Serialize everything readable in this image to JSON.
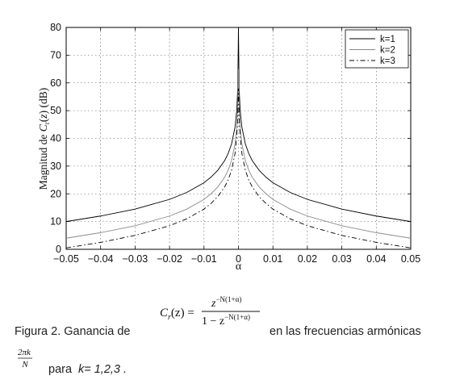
{
  "chart_data": {
    "type": "line",
    "xlabel": "α",
    "ylabel": "Magnitud de C_r(z) (dB)",
    "xlim": [
      -0.05,
      0.05
    ],
    "ylim": [
      0,
      80
    ],
    "xticks": [
      "−0.05",
      "−0.04",
      "−0.03",
      "−0.02",
      "−0.01",
      "0",
      "0.01",
      "0.02",
      "0.03",
      "0.04",
      "0.05"
    ],
    "yticks": [
      "0",
      "10",
      "20",
      "30",
      "40",
      "50",
      "60",
      "70",
      "80"
    ],
    "grid": true,
    "legend_position": "top-right",
    "series": [
      {
        "name": "k=1",
        "color": "#000000",
        "dash": "solid",
        "x": [
          -0.05,
          -0.04,
          -0.03,
          -0.02,
          -0.015,
          -0.01,
          -0.008,
          -0.006,
          -0.004,
          -0.003,
          -0.002,
          -0.001,
          -0.0005,
          -0.0002,
          0,
          0.0002,
          0.0005,
          0.001,
          0.002,
          0.003,
          0.004,
          0.006,
          0.008,
          0.01,
          0.015,
          0.02,
          0.03,
          0.04,
          0.05
        ],
        "y": [
          10.0,
          12.0,
          14.5,
          18.0,
          20.5,
          24.0,
          26.0,
          28.5,
          32.0,
          34.5,
          38.0,
          44.0,
          50.0,
          58.0,
          80.0,
          58.0,
          50.0,
          44.0,
          38.0,
          34.5,
          32.0,
          28.5,
          26.0,
          24.0,
          20.5,
          18.0,
          14.5,
          12.0,
          10.0
        ]
      },
      {
        "name": "k=2",
        "color": "#8a8a8a",
        "dash": "solid",
        "x": [
          -0.05,
          -0.04,
          -0.03,
          -0.02,
          -0.015,
          -0.01,
          -0.008,
          -0.006,
          -0.004,
          -0.003,
          -0.002,
          -0.001,
          -0.0005,
          -0.0002,
          0,
          0.0002,
          0.0005,
          0.001,
          0.002,
          0.003,
          0.004,
          0.006,
          0.008,
          0.01,
          0.015,
          0.02,
          0.03,
          0.04,
          0.05
        ],
        "y": [
          4.0,
          6.0,
          8.5,
          12.0,
          14.5,
          18.0,
          20.0,
          22.5,
          26.0,
          28.5,
          32.0,
          38.0,
          44.0,
          52.0,
          65.0,
          52.0,
          44.0,
          38.0,
          32.0,
          28.5,
          26.0,
          22.5,
          20.0,
          18.0,
          14.5,
          12.0,
          8.5,
          6.0,
          4.0
        ]
      },
      {
        "name": "k=3",
        "color": "#000000",
        "dash": "dashdot",
        "x": [
          -0.05,
          -0.04,
          -0.03,
          -0.02,
          -0.015,
          -0.01,
          -0.008,
          -0.006,
          -0.004,
          -0.003,
          -0.002,
          -0.001,
          -0.0005,
          -0.0002,
          0,
          0.0002,
          0.0005,
          0.001,
          0.002,
          0.003,
          0.004,
          0.006,
          0.008,
          0.01,
          0.015,
          0.02,
          0.03,
          0.04,
          0.05
        ],
        "y": [
          0.5,
          2.5,
          5.0,
          8.5,
          11.0,
          14.5,
          16.5,
          19.0,
          22.5,
          25.0,
          28.5,
          34.5,
          40.5,
          48.0,
          58.0,
          48.0,
          40.5,
          34.5,
          28.5,
          25.0,
          22.5,
          19.0,
          16.5,
          14.5,
          11.0,
          8.5,
          5.0,
          2.5,
          0.5
        ]
      }
    ]
  },
  "caption": {
    "prefix": "Figura 2. Ganancia de",
    "suffix": "en las frecuencias armónicas",
    "para_k": "para",
    "k_values": "k= 1,2,3 ."
  },
  "formula": {
    "lhs": "C",
    "lhs_sub": "r",
    "lhs_arg": "(z) =",
    "numerator": "z",
    "numerator_exp": "−N(1+α)",
    "denominator": "1 − z",
    "denominator_exp": "−N(1+α)",
    "harmonic_num": "2πk",
    "harmonic_den": "N"
  }
}
